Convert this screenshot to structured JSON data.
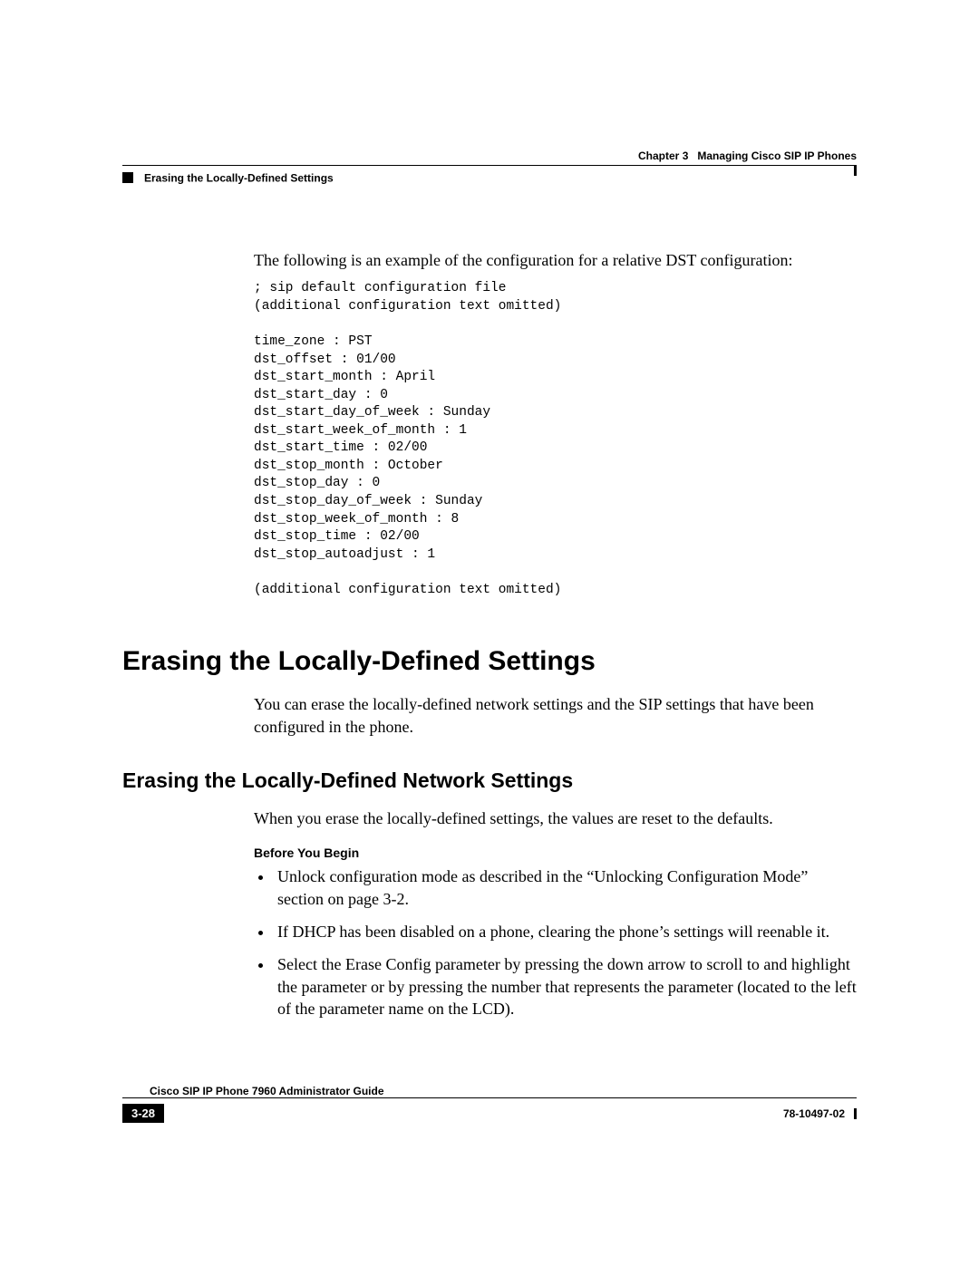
{
  "header": {
    "chapter_label": "Chapter 3",
    "chapter_title": "Managing Cisco SIP IP Phones",
    "section_title": "Erasing the Locally-Defined Settings"
  },
  "intro_text": "The following is an example of the configuration for a relative DST configuration:",
  "code_block": "; sip default configuration file\n(additional configuration text omitted)\n\ntime_zone : PST\ndst_offset : 01/00\ndst_start_month : April\ndst_start_day : 0\ndst_start_day_of_week : Sunday\ndst_start_week_of_month : 1\ndst_start_time : 02/00\ndst_stop_month : October\ndst_stop_day : 0\ndst_stop_day_of_week : Sunday\ndst_stop_week_of_month : 8\ndst_stop_time : 02/00\ndst_stop_autoadjust : 1\n\n(additional configuration text omitted)",
  "h1": "Erasing the Locally-Defined Settings",
  "h1_body": "You can erase the locally-defined network settings and the SIP settings that have been configured in the phone.",
  "h2": "Erasing the Locally-Defined Network Settings",
  "h2_body": "When you erase the locally-defined settings, the values are reset to the defaults.",
  "before_begin_label": "Before You Begin",
  "bullets": [
    "Unlock configuration mode as described in the “Unlocking Configuration Mode” section on page 3-2.",
    "If DHCP has been disabled on a phone, clearing the phone’s settings will reenable it.",
    "Select the Erase Config parameter by pressing the down arrow to scroll to and highlight the parameter or by pressing the number that represents the parameter (located to the left of the parameter name on the LCD)."
  ],
  "footer": {
    "guide_title": "Cisco SIP IP Phone 7960 Administrator Guide",
    "page_number": "3-28",
    "doc_number": "78-10497-02"
  }
}
